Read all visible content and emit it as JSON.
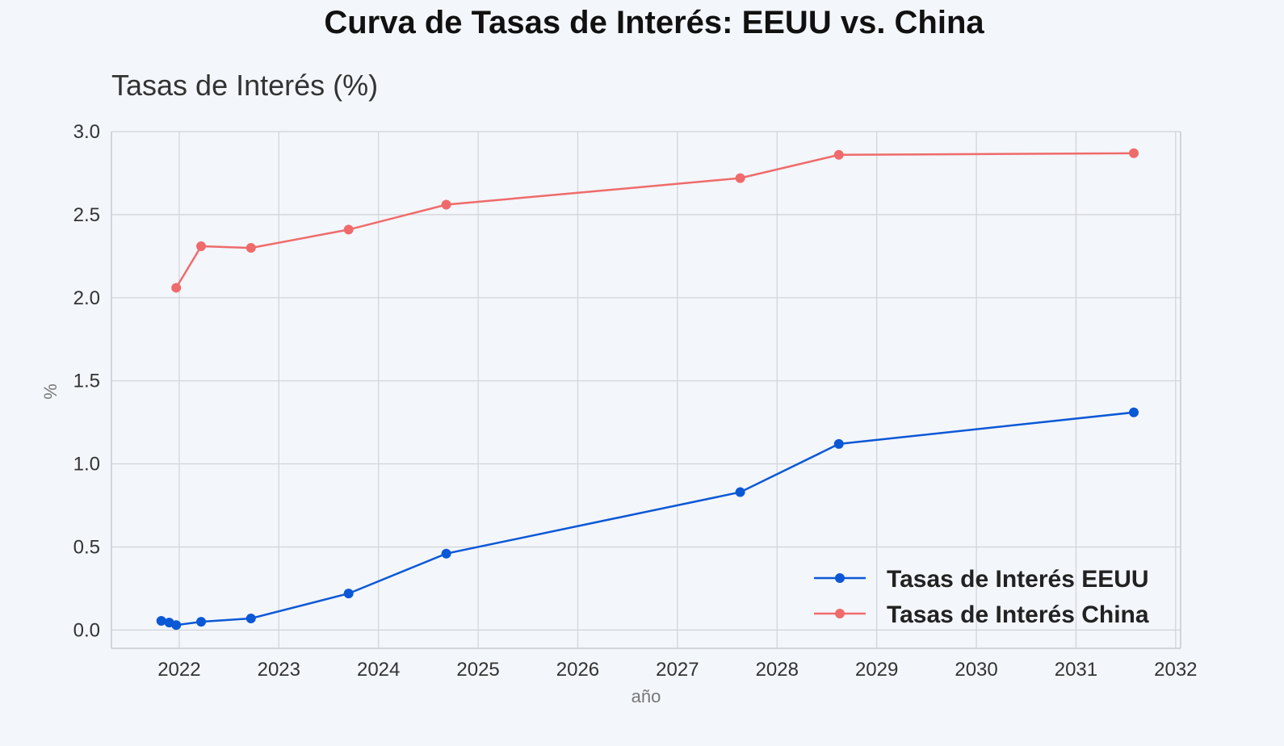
{
  "page": {
    "title": "Curva de Tasas de Interés: EEUU vs. China"
  },
  "chart_data": {
    "type": "line",
    "title": "Curva de Tasas de Interés: EEUU vs. China",
    "subtitle": "Tasas de Interés (%)",
    "xlabel": "año",
    "ylabel": "%",
    "xlim": [
      2021.32,
      2032.05
    ],
    "ylim": [
      -0.11,
      3.0
    ],
    "x_ticks": [
      2022,
      2023,
      2024,
      2025,
      2026,
      2027,
      2028,
      2029,
      2030,
      2031,
      2032
    ],
    "y_ticks": [
      0.0,
      0.5,
      1.0,
      1.5,
      2.0,
      2.5,
      3.0
    ],
    "grid": true,
    "legend_position": "lower-right",
    "series": [
      {
        "name": "Tasas de Interés EEUU",
        "color": "#0b58d6",
        "x": [
          2021.82,
          2021.9,
          2021.97,
          2022.22,
          2022.72,
          2023.7,
          2024.68,
          2027.63,
          2028.62,
          2031.58
        ],
        "values": [
          0.055,
          0.045,
          0.03,
          0.05,
          0.07,
          0.22,
          0.46,
          0.83,
          1.12,
          1.31
        ]
      },
      {
        "name": "Tasas de Interés China",
        "color": "#ef6b6b",
        "x": [
          2021.97,
          2022.22,
          2022.72,
          2023.7,
          2024.68,
          2027.63,
          2028.62,
          2031.58
        ],
        "values": [
          2.06,
          2.31,
          2.3,
          2.41,
          2.56,
          2.72,
          2.86,
          2.87
        ]
      }
    ]
  }
}
